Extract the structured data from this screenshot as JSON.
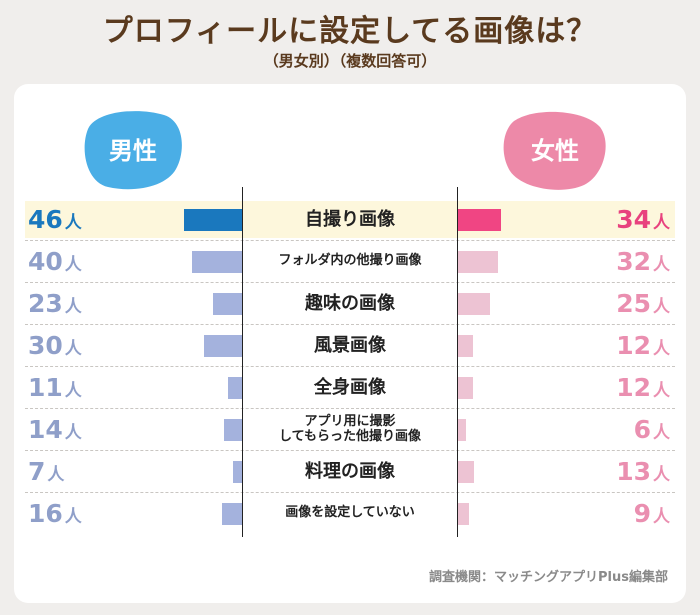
{
  "title": "プロフィールに設定してる画像は？",
  "subtitle": "（男女別）（複数回答可）",
  "male_label": "男性",
  "female_label": "女性",
  "unit": "人",
  "source": "調査機関：マッチングアプリPlus編集部",
  "colors": {
    "male_top": "#1a78be",
    "male_rest": "#8f9fc9",
    "male_bar_top": "#1a78be",
    "male_bar_rest": "#a4b2dd",
    "female_top": "#e8427e",
    "female_rest": "#ea8fb0",
    "female_bar_top": "#f04583",
    "female_bar_rest": "#edc3d3",
    "male_blob": "#4aaee6",
    "female_blob": "#ed89a8"
  },
  "chart_data": {
    "type": "bar",
    "title": "プロフィールに設定してる画像は？",
    "subtitle": "（男女別）（複数回答可）",
    "categories": [
      "自撮り画像",
      "フォルダ内の他撮り画像",
      "趣味の画像",
      "風景画像",
      "全身画像",
      "アプリ用に撮影\nしてもらった他撮り画像",
      "料理の画像",
      "画像を設定していない"
    ],
    "series": [
      {
        "name": "男性",
        "values": [
          46,
          40,
          23,
          30,
          11,
          14,
          7,
          16
        ]
      },
      {
        "name": "女性",
        "values": [
          34,
          32,
          25,
          12,
          12,
          6,
          13,
          9
        ]
      }
    ],
    "xlabel": "",
    "ylabel": "人",
    "ylim": [
      0,
      46
    ]
  }
}
